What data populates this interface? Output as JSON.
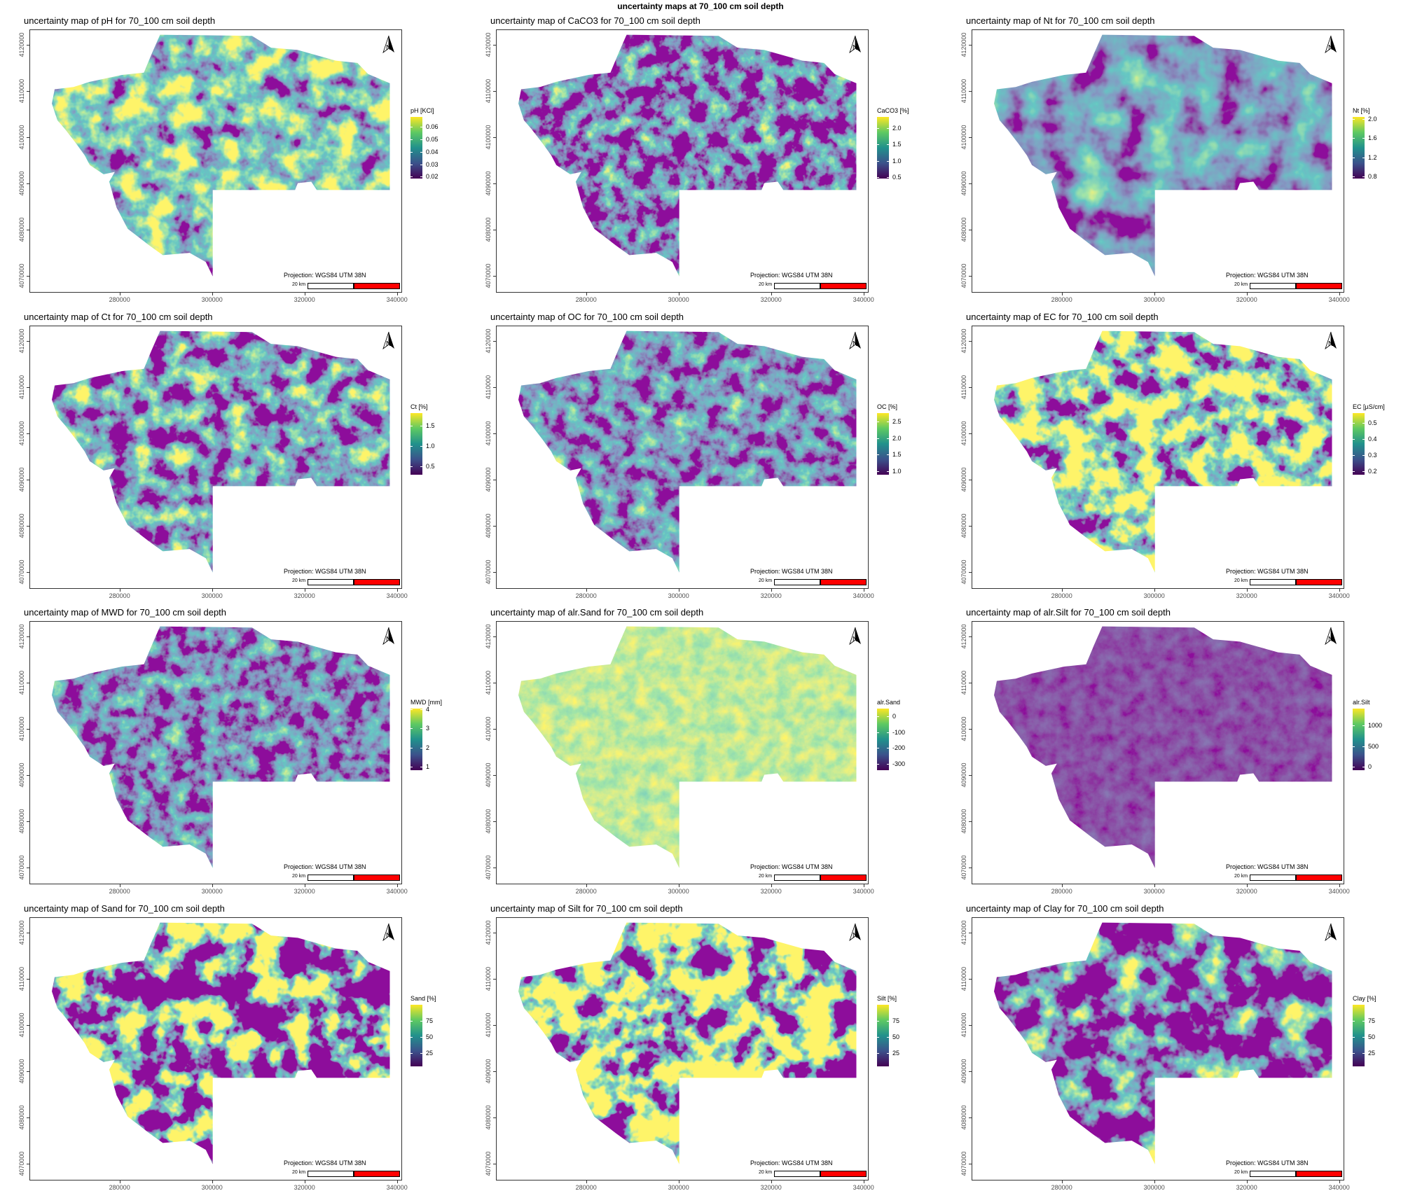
{
  "main_title": "uncertainty maps at 70_100 cm soil depth",
  "common": {
    "projection": "Projection: WGS84 UTM 38N",
    "scale_label": "20 km",
    "north_label": "N",
    "x_ticks": [
      "280000",
      "300000",
      "320000",
      "340000"
    ],
    "y_ticks": [
      "4070000",
      "4080000",
      "4090000",
      "4100000",
      "4110000",
      "4120000"
    ],
    "colormap": "viridis",
    "scale_bar_colors": [
      "#ffffff",
      "#ff0000"
    ]
  },
  "panels": [
    {
      "title": "uncertainty map of pH for 70_100 cm soil depth",
      "legend": {
        "title": "pH [KCl]",
        "ticks": [
          "0.02",
          "0.03",
          "0.04",
          "0.05",
          "0.06"
        ],
        "range": [
          0.0185,
          0.068
        ]
      }
    },
    {
      "title": "uncertainty map of CaCO3 for 70_100 cm soil depth",
      "legend": {
        "title": "CaCO3 [%]",
        "ticks": [
          "0.5",
          "1.0",
          "1.5",
          "2.0"
        ],
        "range": [
          0.45,
          2.35
        ]
      }
    },
    {
      "title": "uncertainty map of Nt for 70_100 cm soil depth",
      "legend": {
        "title": "Nt [%]",
        "ticks": [
          "0.8",
          "1.2",
          "1.6",
          "2.0"
        ],
        "range": [
          0.75,
          2.05
        ]
      }
    },
    {
      "title": "uncertainty map of Ct for 70_100 cm soil depth",
      "legend": {
        "title": "Ct [%]",
        "ticks": [
          "0.5",
          "1.0",
          "1.5"
        ],
        "range": [
          0.3,
          1.8
        ]
      }
    },
    {
      "title": "uncertainty map of OC for 70_100 cm soil depth",
      "legend": {
        "title": "OC [%]",
        "ticks": [
          "1.0",
          "1.5",
          "2.0",
          "2.5"
        ],
        "range": [
          0.9,
          2.75
        ]
      }
    },
    {
      "title": "uncertainty map of EC for 70_100 cm soil depth",
      "legend": {
        "title": "EC [µS/cm]",
        "ticks": [
          "0.2",
          "0.3",
          "0.4",
          "0.5"
        ],
        "range": [
          0.18,
          0.56
        ]
      }
    },
    {
      "title": "uncertainty map of MWD for 70_100 cm soil depth",
      "legend": {
        "title": "MWD [mm]",
        "ticks": [
          "1",
          "2",
          "3",
          "4"
        ],
        "range": [
          0.8,
          4.05
        ]
      }
    },
    {
      "title": "uncertainty map of alr.Sand for 70_100 cm soil depth",
      "legend": {
        "title": "alr.Sand",
        "ticks": [
          "-300",
          "-200",
          "-100",
          "0"
        ],
        "range": [
          -340,
          50
        ]
      }
    },
    {
      "title": "uncertainty map of alr.Silt for 70_100 cm soil depth",
      "legend": {
        "title": "alr.Silt",
        "ticks": [
          "0",
          "500",
          "1000"
        ],
        "range": [
          -80,
          1400
        ]
      }
    },
    {
      "title": "uncertainty map of Sand for 70_100 cm soil depth",
      "legend": {
        "title": "Sand [%]",
        "ticks": [
          "25",
          "50",
          "75"
        ],
        "range": [
          5,
          100
        ]
      }
    },
    {
      "title": "uncertainty map of Silt for 70_100 cm soil depth",
      "legend": {
        "title": "Silt [%]",
        "ticks": [
          "25",
          "50",
          "75"
        ],
        "range": [
          5,
          100
        ]
      }
    },
    {
      "title": "uncertainty map of Clay for 70_100 cm soil depth",
      "legend": {
        "title": "Clay [%]",
        "ticks": [
          "25",
          "50",
          "75"
        ],
        "range": [
          5,
          100
        ]
      }
    }
  ]
}
